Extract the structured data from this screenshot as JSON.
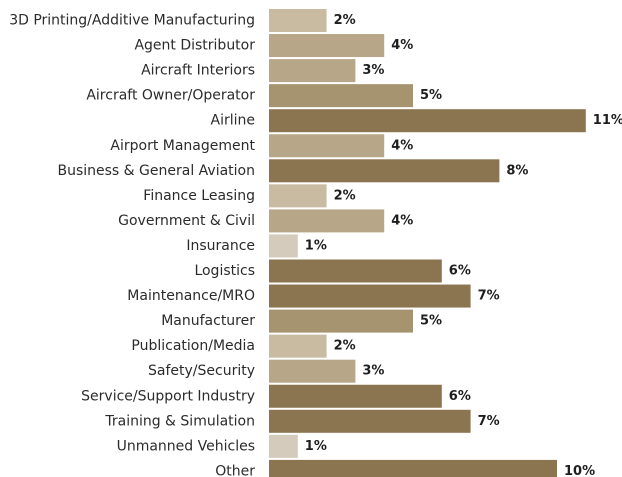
{
  "chart_data": {
    "type": "bar",
    "orientation": "horizontal",
    "categories": [
      "3D Printing/Additive Manufacturing",
      "Agent Distributor",
      "Aircraft Interiors",
      "Aircraft Owner/Operator",
      "Airline",
      "Airport Management",
      "Business & General Aviation",
      "Finance Leasing",
      "Government & Civil",
      "Insurance",
      "Logistics",
      "Maintenance/MRO",
      "Manufacturer",
      "Publication/Media",
      "Safety/Security",
      "Service/Support Industry",
      "Training & Simulation",
      "Unmanned Vehicles",
      "Other"
    ],
    "values": [
      2,
      4,
      3,
      5,
      11,
      4,
      8,
      2,
      4,
      1,
      6,
      7,
      5,
      2,
      3,
      6,
      7,
      1,
      10
    ],
    "value_labels": [
      "2%",
      "4%",
      "3%",
      "5%",
      "11%",
      "4%",
      "8%",
      "2%",
      "4%",
      "1%",
      "6%",
      "7%",
      "5%",
      "2%",
      "3%",
      "6%",
      "7%",
      "1%",
      "10%"
    ],
    "unit": "%",
    "title": "",
    "xlabel": "",
    "ylabel": "",
    "xlim": [
      0,
      11
    ],
    "grid": false,
    "legend": "none",
    "color_ramp": [
      "#d4cbbd",
      "#c9bba2",
      "#b7a687",
      "#a6936f",
      "#8b7551"
    ]
  }
}
